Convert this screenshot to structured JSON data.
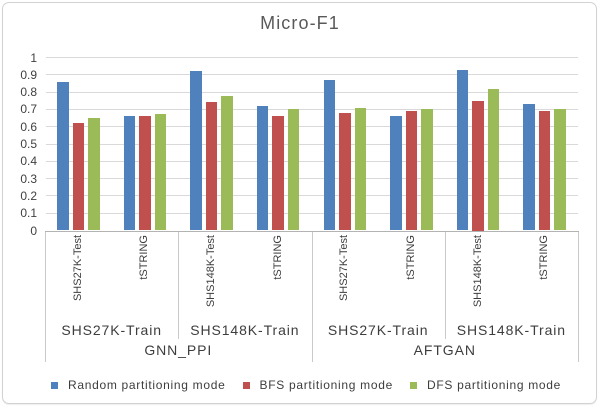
{
  "chart_data": {
    "type": "bar",
    "title": "Micro-F1",
    "ylabel": "",
    "xlabel": "",
    "ylim": [
      0,
      1
    ],
    "y_tick_labels": [
      "0",
      "0.1",
      "0.2",
      "0.3",
      "0.4",
      "0.5",
      "0.6",
      "0.7",
      "0.8",
      "0.9",
      "1"
    ],
    "grid": true,
    "legend_position": "bottom",
    "axis_levels": {
      "level1_categories": [
        "SHS27K-Test",
        "tSTRING",
        "SHS148K-Test",
        "tSTRING",
        "SHS27K-Test",
        "tSTRING",
        "SHS148K-Test",
        "tSTRING"
      ],
      "level2_categories": [
        "SHS27K-Train",
        "SHS148K-Train",
        "SHS27K-Train",
        "SHS148K-Train"
      ],
      "level3_categories": [
        "GNN_PPI",
        "AFTGAN"
      ]
    },
    "series": [
      {
        "name": "Random partitioning mode",
        "color": "#4F81BD",
        "values": [
          0.86,
          0.66,
          0.92,
          0.72,
          0.87,
          0.66,
          0.93,
          0.73
        ]
      },
      {
        "name": "BFS partitioning mode",
        "color": "#C0504D",
        "values": [
          0.62,
          0.66,
          0.74,
          0.66,
          0.68,
          0.69,
          0.75,
          0.69
        ]
      },
      {
        "name": "DFS partitioning mode",
        "color": "#9BBB59",
        "values": [
          0.65,
          0.675,
          0.78,
          0.7,
          0.71,
          0.7,
          0.82,
          0.7
        ]
      }
    ]
  },
  "colors": {
    "background": "#FFFFFF",
    "gridline": "#D9D9D9",
    "axis_line": "#B3B3B3",
    "separator": "#C9C9C9",
    "border": "#D2D2D2",
    "title_text": "#595959",
    "label_text": "#3D3D3D"
  }
}
